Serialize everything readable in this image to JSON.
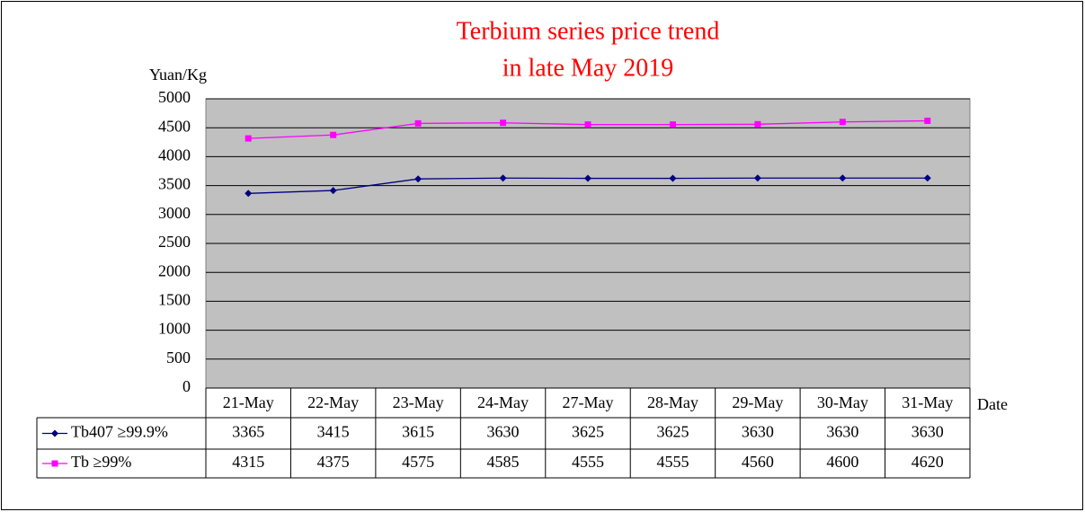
{
  "chart_data": {
    "type": "line",
    "title": [
      "Terbium series price trend",
      "in late May 2019"
    ],
    "y_label": "Yuan/Kg",
    "x_label": "Date",
    "categories": [
      "21-May",
      "22-May",
      "23-May",
      "24-May",
      "27-May",
      "28-May",
      "29-May",
      "30-May",
      "31-May"
    ],
    "series": [
      {
        "name": "Tb407 ≥99.9%",
        "color": "#000080",
        "marker": "diamond",
        "values": [
          3365,
          3415,
          3615,
          3630,
          3625,
          3625,
          3630,
          3630,
          3630
        ]
      },
      {
        "name": "Tb ≥99%",
        "color": "#ff00ff",
        "marker": "square",
        "values": [
          4315,
          4375,
          4575,
          4585,
          4555,
          4555,
          4560,
          4600,
          4620
        ]
      }
    ],
    "ylim": [
      0,
      5000
    ],
    "yticks": [
      0,
      500,
      1000,
      1500,
      2000,
      2500,
      3000,
      3500,
      4000,
      4500,
      5000
    ],
    "grid": true,
    "data_table": true
  }
}
